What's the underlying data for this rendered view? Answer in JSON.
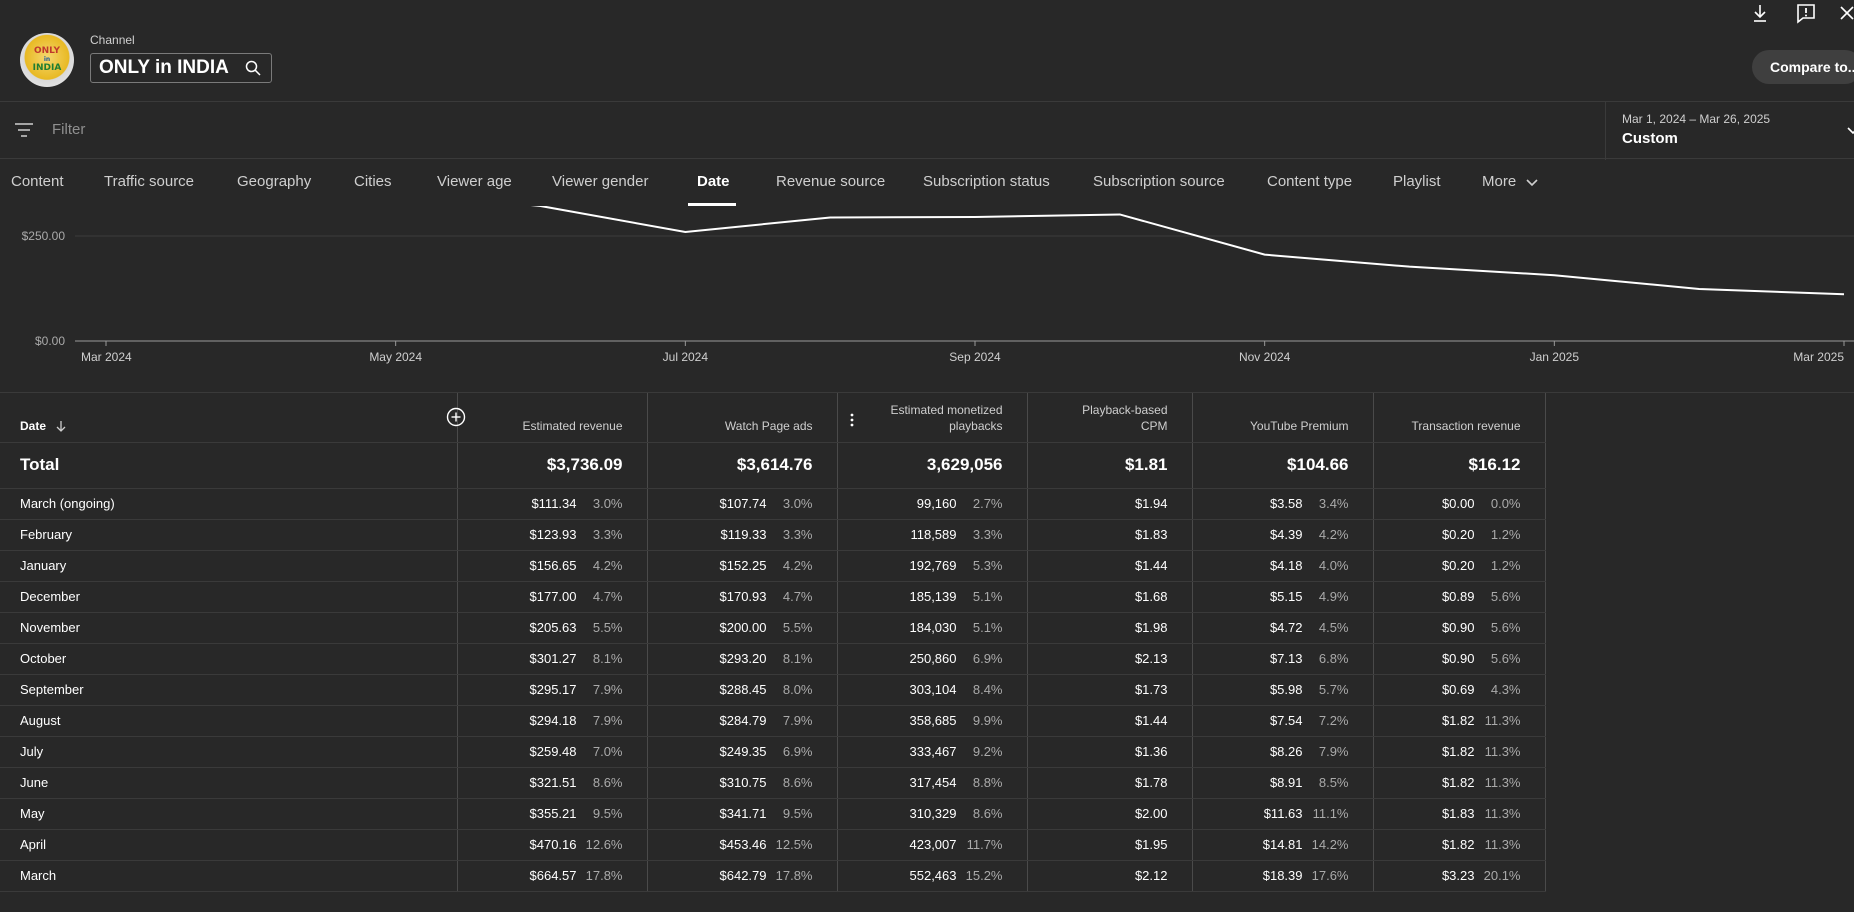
{
  "header": {
    "channel_label": "Channel",
    "channel_name": "ONLY in INDIA",
    "avatar_text": [
      "ONLY",
      "in",
      "INDIA"
    ],
    "compare_label": "Compare to..."
  },
  "filter": {
    "placeholder": "Filter"
  },
  "date_selector": {
    "range": "Mar 1, 2024 – Mar 26, 2025",
    "preset": "Custom"
  },
  "tabs": [
    {
      "label": "Content",
      "active": false
    },
    {
      "label": "Traffic source",
      "active": false
    },
    {
      "label": "Geography",
      "active": false
    },
    {
      "label": "Cities",
      "active": false
    },
    {
      "label": "Viewer age",
      "active": false
    },
    {
      "label": "Viewer gender",
      "active": false
    },
    {
      "label": "Date",
      "active": true
    },
    {
      "label": "Revenue source",
      "active": false
    },
    {
      "label": "Subscription status",
      "active": false
    },
    {
      "label": "Subscription source",
      "active": false
    },
    {
      "label": "Content type",
      "active": false
    },
    {
      "label": "Playlist",
      "active": false
    },
    {
      "label": "More",
      "active": false
    }
  ],
  "chart_data": {
    "type": "line",
    "y_ticks": [
      "$250.00",
      "$0.00"
    ],
    "x_ticks": [
      "Mar 2024",
      "May 2024",
      "Jul 2024",
      "Sep 2024",
      "Nov 2024",
      "Jan 2025",
      "Mar 2025"
    ],
    "x": [
      "May 2024",
      "Jun 2024",
      "Jul 2024",
      "Aug 2024",
      "Sep 2024",
      "Oct 2024",
      "Nov 2024",
      "Dec 2024",
      "Jan 2025",
      "Feb 2025",
      "Mar 2025"
    ],
    "values": [
      355.21,
      321.51,
      259.48,
      294.18,
      295.17,
      301.27,
      205.63,
      177.0,
      156.65,
      123.93,
      111.34
    ]
  },
  "table": {
    "columns": [
      {
        "label": "Date"
      },
      {
        "label": "Estimated revenue"
      },
      {
        "label": "Watch Page ads"
      },
      {
        "label": "Estimated monetized playbacks"
      },
      {
        "label": "Playback-based CPM"
      },
      {
        "label": "YouTube Premium"
      },
      {
        "label": "Transaction revenue"
      }
    ],
    "total": {
      "label": "Total",
      "values": [
        "$3,736.09",
        "$3,614.76",
        "3,629,056",
        "$1.81",
        "$104.66",
        "$16.12"
      ]
    },
    "rows": [
      {
        "label": "March (ongoing)",
        "rev": "$111.34",
        "rev_pct": "3.0%",
        "wpa": "$107.74",
        "wpa_pct": "3.0%",
        "mp": "99,160",
        "mp_pct": "2.7%",
        "cpm": "$1.94",
        "ytp": "$3.58",
        "ytp_pct": "3.4%",
        "tr": "$0.00",
        "tr_pct": "0.0%"
      },
      {
        "label": "February",
        "rev": "$123.93",
        "rev_pct": "3.3%",
        "wpa": "$119.33",
        "wpa_pct": "3.3%",
        "mp": "118,589",
        "mp_pct": "3.3%",
        "cpm": "$1.83",
        "ytp": "$4.39",
        "ytp_pct": "4.2%",
        "tr": "$0.20",
        "tr_pct": "1.2%"
      },
      {
        "label": "January",
        "rev": "$156.65",
        "rev_pct": "4.2%",
        "wpa": "$152.25",
        "wpa_pct": "4.2%",
        "mp": "192,769",
        "mp_pct": "5.3%",
        "cpm": "$1.44",
        "ytp": "$4.18",
        "ytp_pct": "4.0%",
        "tr": "$0.20",
        "tr_pct": "1.2%"
      },
      {
        "label": "December",
        "rev": "$177.00",
        "rev_pct": "4.7%",
        "wpa": "$170.93",
        "wpa_pct": "4.7%",
        "mp": "185,139",
        "mp_pct": "5.1%",
        "cpm": "$1.68",
        "ytp": "$5.15",
        "ytp_pct": "4.9%",
        "tr": "$0.89",
        "tr_pct": "5.6%"
      },
      {
        "label": "November",
        "rev": "$205.63",
        "rev_pct": "5.5%",
        "wpa": "$200.00",
        "wpa_pct": "5.5%",
        "mp": "184,030",
        "mp_pct": "5.1%",
        "cpm": "$1.98",
        "ytp": "$4.72",
        "ytp_pct": "4.5%",
        "tr": "$0.90",
        "tr_pct": "5.6%"
      },
      {
        "label": "October",
        "rev": "$301.27",
        "rev_pct": "8.1%",
        "wpa": "$293.20",
        "wpa_pct": "8.1%",
        "mp": "250,860",
        "mp_pct": "6.9%",
        "cpm": "$2.13",
        "ytp": "$7.13",
        "ytp_pct": "6.8%",
        "tr": "$0.90",
        "tr_pct": "5.6%"
      },
      {
        "label": "September",
        "rev": "$295.17",
        "rev_pct": "7.9%",
        "wpa": "$288.45",
        "wpa_pct": "8.0%",
        "mp": "303,104",
        "mp_pct": "8.4%",
        "cpm": "$1.73",
        "ytp": "$5.98",
        "ytp_pct": "5.7%",
        "tr": "$0.69",
        "tr_pct": "4.3%"
      },
      {
        "label": "August",
        "rev": "$294.18",
        "rev_pct": "7.9%",
        "wpa": "$284.79",
        "wpa_pct": "7.9%",
        "mp": "358,685",
        "mp_pct": "9.9%",
        "cpm": "$1.44",
        "ytp": "$7.54",
        "ytp_pct": "7.2%",
        "tr": "$1.82",
        "tr_pct": "11.3%"
      },
      {
        "label": "July",
        "rev": "$259.48",
        "rev_pct": "7.0%",
        "wpa": "$249.35",
        "wpa_pct": "6.9%",
        "mp": "333,467",
        "mp_pct": "9.2%",
        "cpm": "$1.36",
        "ytp": "$8.26",
        "ytp_pct": "7.9%",
        "tr": "$1.82",
        "tr_pct": "11.3%"
      },
      {
        "label": "June",
        "rev": "$321.51",
        "rev_pct": "8.6%",
        "wpa": "$310.75",
        "wpa_pct": "8.6%",
        "mp": "317,454",
        "mp_pct": "8.8%",
        "cpm": "$1.78",
        "ytp": "$8.91",
        "ytp_pct": "8.5%",
        "tr": "$1.82",
        "tr_pct": "11.3%"
      },
      {
        "label": "May",
        "rev": "$355.21",
        "rev_pct": "9.5%",
        "wpa": "$341.71",
        "wpa_pct": "9.5%",
        "mp": "310,329",
        "mp_pct": "8.6%",
        "cpm": "$2.00",
        "ytp": "$11.63",
        "ytp_pct": "11.1%",
        "tr": "$1.83",
        "tr_pct": "11.3%"
      },
      {
        "label": "April",
        "rev": "$470.16",
        "rev_pct": "12.6%",
        "wpa": "$453.46",
        "wpa_pct": "12.5%",
        "mp": "423,007",
        "mp_pct": "11.7%",
        "cpm": "$1.95",
        "ytp": "$14.81",
        "ytp_pct": "14.2%",
        "tr": "$1.82",
        "tr_pct": "11.3%"
      },
      {
        "label": "March",
        "rev": "$664.57",
        "rev_pct": "17.8%",
        "wpa": "$642.79",
        "wpa_pct": "17.8%",
        "mp": "552,463",
        "mp_pct": "15.2%",
        "cpm": "$2.12",
        "ytp": "$18.39",
        "ytp_pct": "17.6%",
        "tr": "$3.23",
        "tr_pct": "20.1%"
      }
    ]
  }
}
